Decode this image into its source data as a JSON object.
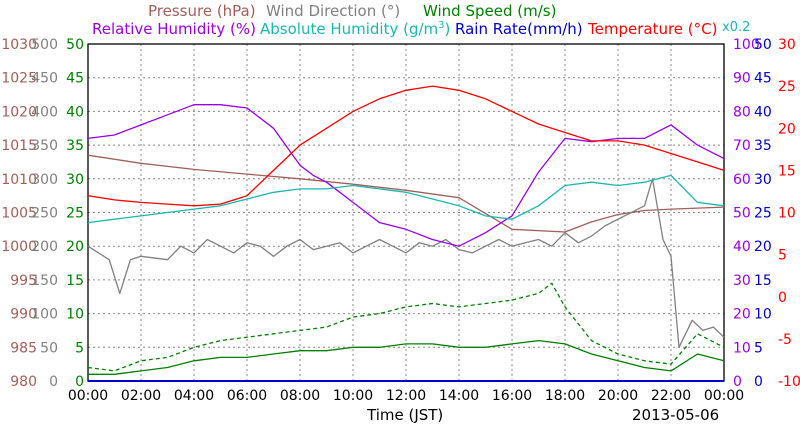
{
  "chart_data": {
    "type": "line",
    "legend_row1": [
      {
        "name": "Pressure (hPa)",
        "color": "#a0605a"
      },
      {
        "name": "Wind Direction (°)",
        "color": "#808080"
      },
      {
        "name": "Wind Speed (m/s)",
        "color": "#008000"
      }
    ],
    "legend_row2": [
      {
        "name": "Relative Humidity (%)",
        "color": "#9a00e6"
      },
      {
        "name": "Absolute Humidity (g/m",
        "sup": "3",
        "tail": ")",
        "color": "#18b8b0"
      },
      {
        "name": "Rain Rate(mm/h)",
        "color": "#0000cc"
      },
      {
        "name": "Temperature (°C)",
        "color": "#ff0000"
      }
    ],
    "scale_note": "x0.2",
    "x_ticks": [
      "00:00",
      "02:00",
      "04:00",
      "06:00",
      "08:00",
      "10:00",
      "12:00",
      "14:00",
      "16:00",
      "18:00",
      "20:00",
      "22:00",
      "00:00"
    ],
    "xlabel": "Time (JST)",
    "date_label": "2013-05-06",
    "xlim": [
      0,
      24
    ],
    "y_axes": {
      "pressure": {
        "color": "#a0605a",
        "ticks": [
          "1030",
          "1025",
          "1020",
          "1015",
          "1010",
          "1005",
          "1000",
          "995",
          "990",
          "985",
          "980"
        ],
        "range": [
          980,
          1030
        ]
      },
      "wind_direction": {
        "color": "#808080",
        "ticks": [
          "500",
          "450",
          "400",
          "350",
          "300",
          "250",
          "200",
          "150",
          "100",
          "50",
          "0"
        ],
        "range": [
          0,
          500
        ]
      },
      "wind_speed": {
        "color": "#008000",
        "ticks": [
          "50",
          "45",
          "40",
          "35",
          "30",
          "25",
          "20",
          "15",
          "10",
          "5",
          "0"
        ],
        "range": [
          0,
          50
        ]
      },
      "humidity": {
        "color": "#9a00e6",
        "ticks": [
          "100",
          "90",
          "80",
          "70",
          "60",
          "50",
          "40",
          "30",
          "20",
          "10",
          "0"
        ],
        "range": [
          0,
          100
        ]
      },
      "rain_rate": {
        "color": "#0000cc",
        "ticks": [
          "50",
          "45",
          "40",
          "35",
          "30",
          "25",
          "20",
          "15",
          "10",
          "5",
          "0"
        ],
        "range": [
          0,
          50
        ]
      },
      "temperature": {
        "color": "#ff0000",
        "ticks": [
          "30",
          "25",
          "20",
          "15",
          "10",
          "5",
          "0",
          "-5",
          "-10"
        ],
        "range": [
          -10,
          30
        ]
      }
    },
    "series": [
      {
        "name": "Pressure (hPa)",
        "axis": "pressure",
        "color": "#a0605a",
        "x": [
          0,
          2,
          4,
          6,
          8,
          10,
          12,
          14,
          16,
          18,
          19,
          20,
          21,
          22,
          24
        ],
        "y": [
          1013.5,
          1012.3,
          1011.4,
          1010.7,
          1010,
          1009.2,
          1008.3,
          1007.2,
          1002.5,
          1002.1,
          1003.6,
          1004.7,
          1005.3,
          1005.5,
          1005.8
        ]
      },
      {
        "name": "Wind Direction (°)",
        "axis": "wind_direction",
        "color": "#808080",
        "x": [
          0,
          0.8,
          1.2,
          1.6,
          2,
          3,
          3.5,
          4,
          4.5,
          5,
          5.5,
          6,
          6.5,
          7,
          7.5,
          8,
          8.5,
          9,
          9.5,
          10,
          10.5,
          11,
          11.5,
          12,
          12.5,
          13,
          13.5,
          14,
          14.5,
          15,
          15.5,
          16,
          16.5,
          17,
          17.5,
          18,
          18.5,
          19,
          19.5,
          20,
          20.5,
          21,
          21.3,
          21.7,
          22,
          22.3,
          22.8,
          23.2,
          23.6,
          24
        ],
        "y": [
          200,
          180,
          130,
          180,
          185,
          180,
          200,
          190,
          210,
          200,
          190,
          205,
          200,
          185,
          200,
          210,
          195,
          200,
          205,
          190,
          200,
          210,
          200,
          190,
          205,
          200,
          210,
          195,
          190,
          200,
          210,
          200,
          205,
          210,
          200,
          220,
          205,
          215,
          230,
          240,
          250,
          260,
          300,
          210,
          185,
          50,
          90,
          75,
          80,
          65
        ]
      },
      {
        "name": "Wind Speed (m/s) avg",
        "axis": "wind_speed",
        "color": "#008000",
        "x": [
          0,
          1,
          2,
          3,
          4,
          5,
          6,
          7,
          8,
          9,
          10,
          11,
          12,
          13,
          14,
          15,
          16,
          17,
          18,
          19,
          20,
          21,
          22,
          23,
          24
        ],
        "y": [
          1,
          1,
          1.5,
          2,
          3,
          3.5,
          3.5,
          4,
          4.5,
          4.5,
          5,
          5,
          5.5,
          5.5,
          5,
          5,
          5.5,
          6,
          5.5,
          4,
          3,
          2,
          1.5,
          4,
          3
        ]
      },
      {
        "name": "Wind Speed (m/s) gust",
        "axis": "wind_speed",
        "color": "#008000",
        "dashed": true,
        "x": [
          0,
          1,
          2,
          3,
          4,
          5,
          6,
          7,
          8,
          9,
          10,
          11,
          12,
          13,
          14,
          15,
          16,
          17,
          17.5,
          18,
          19,
          20,
          21,
          22,
          23,
          24
        ],
        "y": [
          2,
          1.5,
          3,
          3.5,
          5,
          6,
          6.5,
          7,
          7.5,
          8,
          9.5,
          10,
          11,
          11.5,
          11,
          11.5,
          12,
          13,
          14.5,
          11,
          6,
          4,
          3,
          2.5,
          7,
          5
        ]
      },
      {
        "name": "Relative Humidity (%)",
        "axis": "humidity",
        "color": "#9a00e6",
        "x": [
          0,
          1,
          2,
          3,
          4,
          4.5,
          5,
          6,
          7,
          8,
          8.5,
          9,
          10,
          11,
          12,
          13,
          14,
          15,
          16,
          17,
          18,
          19,
          20,
          21,
          22,
          23,
          24
        ],
        "y": [
          72,
          73,
          76,
          79,
          82,
          82,
          82,
          81,
          75,
          64,
          61,
          59,
          53,
          47,
          45,
          42,
          40,
          44,
          49,
          62,
          72,
          71,
          72,
          72,
          76,
          70,
          66
        ]
      },
      {
        "name": "Absolute Humidity (g/m3) x0.2",
        "axis": "humidity",
        "color": "#18b8b0",
        "x": [
          0,
          1,
          2,
          3,
          4,
          5,
          6,
          7,
          8,
          9,
          10,
          11,
          12,
          13,
          14,
          15,
          16,
          17,
          18,
          19,
          20,
          21,
          22,
          23,
          24
        ],
        "y": [
          47,
          48,
          49,
          50,
          51,
          52,
          54,
          56,
          57,
          57,
          58,
          57,
          56,
          54,
          52,
          49,
          48,
          52,
          58,
          59,
          58,
          59,
          61,
          53,
          52
        ]
      },
      {
        "name": "Rain Rate(mm/h)",
        "axis": "rain_rate",
        "color": "#0000cc",
        "x": [
          0,
          24
        ],
        "y": [
          0,
          0
        ]
      },
      {
        "name": "Temperature (°C)",
        "axis": "temperature",
        "color": "#ff0000",
        "x": [
          0,
          1,
          2,
          3,
          4,
          5,
          6,
          7,
          8,
          9,
          10,
          11,
          12,
          13,
          14,
          15,
          16,
          17,
          18,
          19,
          20,
          21,
          22,
          23,
          24
        ],
        "y": [
          12,
          11.5,
          11.2,
          11,
          10.8,
          11,
          12,
          15,
          18,
          20,
          22,
          23.5,
          24.5,
          25,
          24.5,
          23.5,
          22,
          20.5,
          19.5,
          18.5,
          18.5,
          18,
          17,
          16,
          15
        ]
      }
    ]
  }
}
